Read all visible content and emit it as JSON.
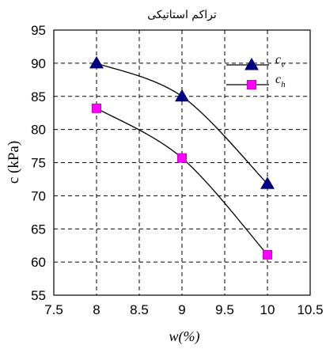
{
  "chart_data": {
    "type": "line",
    "title": "تراکم استاتیکی",
    "xlabel": "w(%)",
    "ylabel": "c (kPa)",
    "xlim": [
      7.5,
      10.5
    ],
    "ylim": [
      55,
      95
    ],
    "x_ticks": [
      "7.5",
      "8",
      "8.5",
      "9",
      "9.5",
      "10",
      "10.5"
    ],
    "y_ticks": [
      "55",
      "60",
      "65",
      "70",
      "75",
      "80",
      "85",
      "90",
      "95"
    ],
    "grid": "dashed",
    "legend_position": "top-right",
    "series": [
      {
        "name": "cv",
        "name_main": "c",
        "name_sub": "v",
        "marker": "triangle",
        "marker_color": "#000080",
        "line_color": "#000000",
        "x": [
          8,
          9,
          10
        ],
        "y": [
          90,
          85,
          71.8
        ]
      },
      {
        "name": "ch",
        "name_main": "c",
        "name_sub": "h",
        "marker": "square",
        "marker_color": "#ff00ff",
        "line_color": "#000000",
        "x": [
          8,
          9,
          10
        ],
        "y": [
          83.2,
          75.7,
          61.1
        ]
      }
    ]
  }
}
